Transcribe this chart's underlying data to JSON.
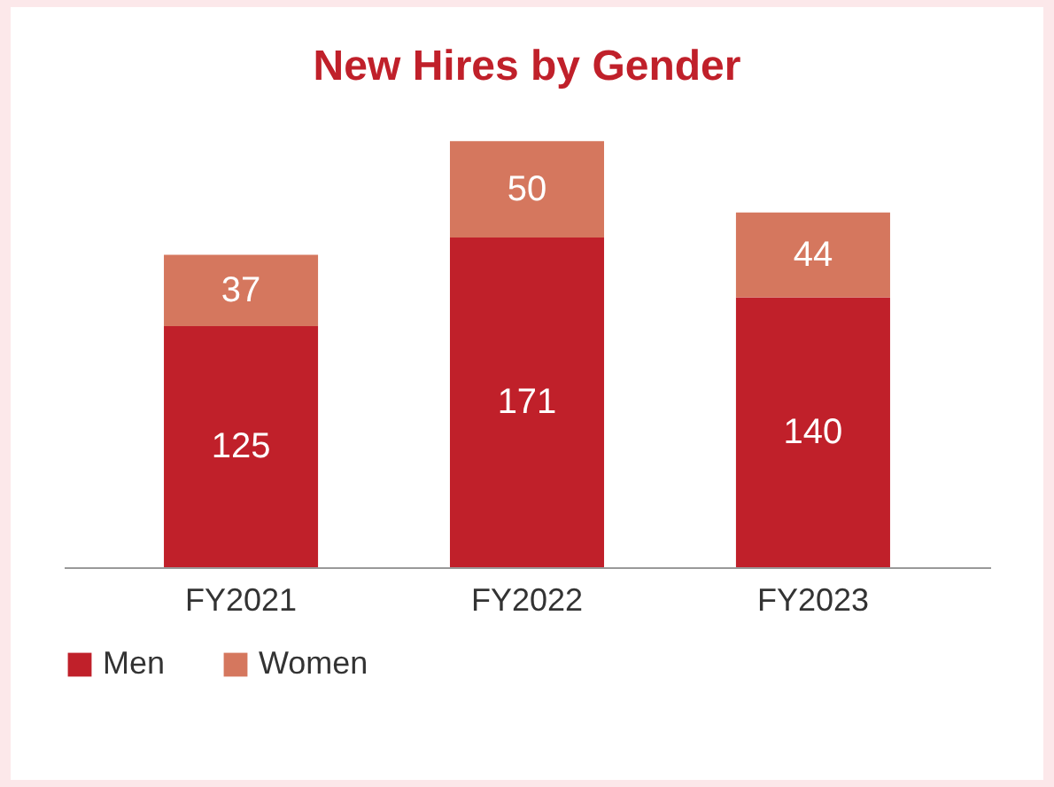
{
  "chart_data": {
    "type": "bar",
    "title": "New Hires by Gender",
    "categories": [
      "FY2021",
      "FY2022",
      "FY2023"
    ],
    "stacked": true,
    "data_labels": true,
    "legend": "bottom",
    "grid": false,
    "series": [
      {
        "name": "Men",
        "color": "#c0202a",
        "values": [
          125,
          171,
          140
        ]
      },
      {
        "name": "Women",
        "color": "#d5775e",
        "values": [
          37,
          50,
          44
        ]
      }
    ]
  }
}
